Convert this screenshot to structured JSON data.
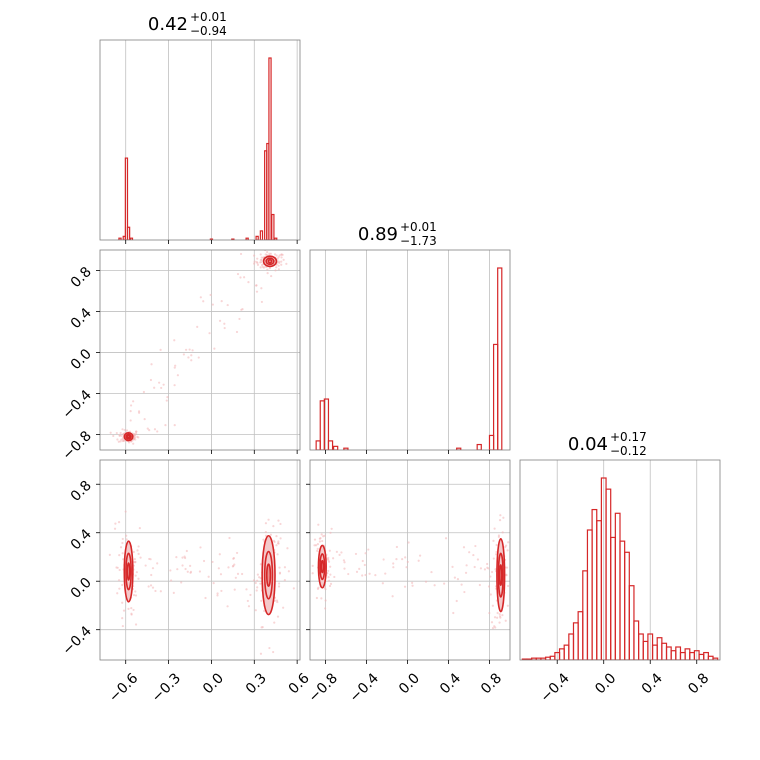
{
  "colors": {
    "accent": "#d62728",
    "grid": "#c0c0c0",
    "frame": "#808080",
    "contour_fill": "#f4c9ca",
    "sample": "#f2b5b6"
  },
  "chart_data": [
    {
      "type": "histogram",
      "panel": "p0",
      "title": {
        "value": "0.42",
        "plus": "+0.01",
        "minus": "−0.94"
      },
      "xlim": [
        -0.78,
        0.62
      ],
      "xticks": [
        -0.6,
        -0.3,
        0.0,
        0.3,
        0.6
      ],
      "grid": true,
      "bins": [
        {
          "x": -0.64,
          "y": 0.01
        },
        {
          "x": -0.61,
          "y": 0.02
        },
        {
          "x": -0.595,
          "y": 0.45
        },
        {
          "x": -0.58,
          "y": 0.07
        },
        {
          "x": -0.56,
          "y": 0.01
        },
        {
          "x": 0.0,
          "y": 0.005
        },
        {
          "x": 0.15,
          "y": 0.005
        },
        {
          "x": 0.25,
          "y": 0.01
        },
        {
          "x": 0.32,
          "y": 0.02
        },
        {
          "x": 0.35,
          "y": 0.05
        },
        {
          "x": 0.38,
          "y": 0.49
        },
        {
          "x": 0.395,
          "y": 0.53
        },
        {
          "x": 0.41,
          "y": 1.0
        },
        {
          "x": 0.43,
          "y": 0.14
        },
        {
          "x": 0.45,
          "y": 0.01
        }
      ]
    },
    {
      "type": "scatter-contour",
      "panel": "p1",
      "xlim": [
        -0.78,
        0.62
      ],
      "ylim": [
        -0.95,
        1.0
      ],
      "xticks": [
        -0.6,
        -0.3,
        0.0,
        0.3,
        0.6
      ],
      "yticks": [
        -0.8,
        -0.4,
        0.0,
        0.4,
        0.8
      ],
      "ytick_labels": [
        "−0.8",
        "−0.4",
        "0.0",
        "0.4",
        "0.8"
      ],
      "grid": true,
      "modes": [
        {
          "x": 0.41,
          "y": 0.89,
          "sx": 0.018,
          "sy": 0.02
        },
        {
          "x": -0.58,
          "y": -0.82,
          "sx": 0.012,
          "sy": 0.015
        }
      ]
    },
    {
      "type": "scatter-contour",
      "panel": "p2",
      "xlim": [
        -0.78,
        0.62
      ],
      "ylim": [
        -0.65,
        1.0
      ],
      "xticks": [
        -0.6,
        -0.3,
        0.0,
        0.3,
        0.6
      ],
      "xtick_labels": [
        "−0.6",
        "−0.3",
        "0.0",
        "0.3",
        "0.6"
      ],
      "yticks": [
        -0.4,
        0.0,
        0.4,
        0.8
      ],
      "ytick_labels": [
        "−0.4",
        "0.0",
        "0.4",
        "0.8"
      ],
      "grid": true,
      "modes": [
        {
          "x": -0.58,
          "y": 0.08,
          "sx": 0.012,
          "sy": 0.1
        },
        {
          "x": 0.4,
          "y": 0.05,
          "sx": 0.018,
          "sy": 0.13
        }
      ]
    },
    {
      "type": "histogram",
      "panel": "p3",
      "title": {
        "value": "0.89",
        "plus": "+0.01",
        "minus": "−1.73"
      },
      "xlim": [
        -0.95,
        1.0
      ],
      "xticks": [
        -0.8,
        -0.4,
        0.0,
        0.4,
        0.8
      ],
      "grid": true,
      "bins": [
        {
          "x": -0.87,
          "y": 0.05
        },
        {
          "x": -0.83,
          "y": 0.27
        },
        {
          "x": -0.79,
          "y": 0.28
        },
        {
          "x": -0.75,
          "y": 0.05
        },
        {
          "x": -0.7,
          "y": 0.02
        },
        {
          "x": -0.6,
          "y": 0.01
        },
        {
          "x": 0.5,
          "y": 0.01
        },
        {
          "x": 0.7,
          "y": 0.03
        },
        {
          "x": 0.82,
          "y": 0.08
        },
        {
          "x": 0.86,
          "y": 0.58
        },
        {
          "x": 0.9,
          "y": 1.0
        }
      ]
    },
    {
      "type": "scatter-contour",
      "panel": "p4",
      "xlim": [
        -0.95,
        1.0
      ],
      "ylim": [
        -0.65,
        1.0
      ],
      "xticks": [
        -0.8,
        -0.4,
        0.0,
        0.4,
        0.8
      ],
      "xtick_labels": [
        "−0.8",
        "−0.4",
        "0.0",
        "0.4",
        "0.8"
      ],
      "yticks": [
        -0.4,
        0.0,
        0.4,
        0.8
      ],
      "grid": true,
      "modes": [
        {
          "x": -0.83,
          "y": 0.12,
          "sx": 0.015,
          "sy": 0.07
        },
        {
          "x": 0.91,
          "y": 0.05,
          "sx": 0.015,
          "sy": 0.12
        }
      ]
    },
    {
      "type": "histogram",
      "panel": "p5",
      "title": {
        "value": "0.04",
        "plus": "+0.17",
        "minus": "−0.12"
      },
      "xlim": [
        -0.72,
        1.0
      ],
      "xticks": [
        -0.4,
        0.0,
        0.4,
        0.8
      ],
      "xtick_labels": [
        "−0.4",
        "0.0",
        "0.4",
        "0.8"
      ],
      "grid": true,
      "bins": [
        {
          "x": -0.68,
          "y": 0.005
        },
        {
          "x": -0.64,
          "y": 0.005
        },
        {
          "x": -0.6,
          "y": 0.01
        },
        {
          "x": -0.56,
          "y": 0.01
        },
        {
          "x": -0.52,
          "y": 0.01
        },
        {
          "x": -0.48,
          "y": 0.015
        },
        {
          "x": -0.44,
          "y": 0.02
        },
        {
          "x": -0.4,
          "y": 0.04
        },
        {
          "x": -0.36,
          "y": 0.06
        },
        {
          "x": -0.32,
          "y": 0.08
        },
        {
          "x": -0.28,
          "y": 0.14
        },
        {
          "x": -0.24,
          "y": 0.2
        },
        {
          "x": -0.2,
          "y": 0.26
        },
        {
          "x": -0.16,
          "y": 0.48
        },
        {
          "x": -0.12,
          "y": 0.7
        },
        {
          "x": -0.08,
          "y": 0.81
        },
        {
          "x": -0.04,
          "y": 0.75
        },
        {
          "x": 0.0,
          "y": 0.98
        },
        {
          "x": 0.04,
          "y": 0.92
        },
        {
          "x": 0.08,
          "y": 0.66
        },
        {
          "x": 0.12,
          "y": 0.79
        },
        {
          "x": 0.16,
          "y": 0.64
        },
        {
          "x": 0.2,
          "y": 0.58
        },
        {
          "x": 0.24,
          "y": 0.4
        },
        {
          "x": 0.28,
          "y": 0.21
        },
        {
          "x": 0.32,
          "y": 0.14
        },
        {
          "x": 0.36,
          "y": 0.1
        },
        {
          "x": 0.4,
          "y": 0.14
        },
        {
          "x": 0.44,
          "y": 0.08
        },
        {
          "x": 0.48,
          "y": 0.12
        },
        {
          "x": 0.52,
          "y": 0.09
        },
        {
          "x": 0.56,
          "y": 0.07
        },
        {
          "x": 0.6,
          "y": 0.05
        },
        {
          "x": 0.64,
          "y": 0.07
        },
        {
          "x": 0.68,
          "y": 0.04
        },
        {
          "x": 0.72,
          "y": 0.06
        },
        {
          "x": 0.76,
          "y": 0.04
        },
        {
          "x": 0.8,
          "y": 0.05
        },
        {
          "x": 0.84,
          "y": 0.03
        },
        {
          "x": 0.88,
          "y": 0.04
        },
        {
          "x": 0.92,
          "y": 0.02
        },
        {
          "x": 0.96,
          "y": 0.01
        }
      ]
    }
  ]
}
